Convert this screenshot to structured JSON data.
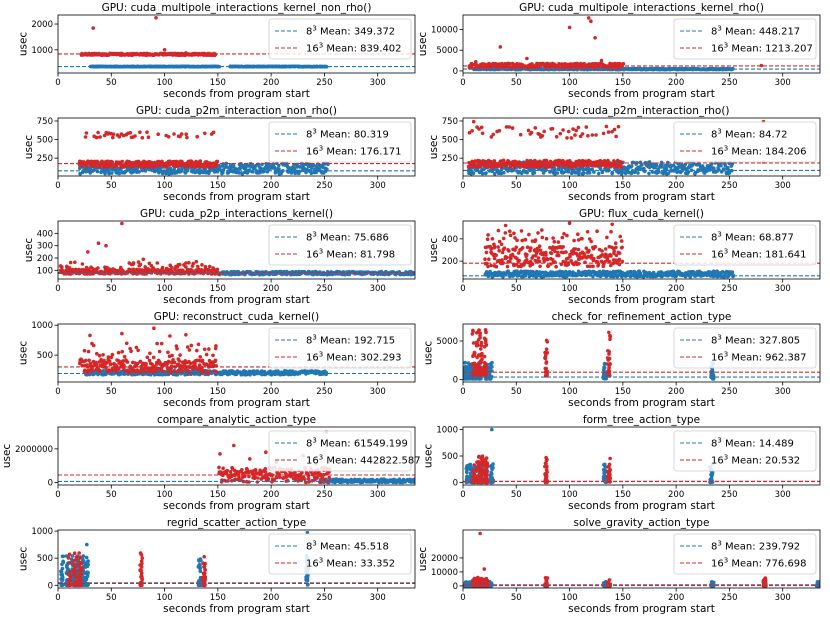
{
  "figure": {
    "colors": {
      "blue": "#1f77b4",
      "red": "#d62728"
    },
    "legend_label_template": "{sz}$^3$ Mean: {val}"
  },
  "chart_data": [
    {
      "type": "scatter",
      "title": "GPU: cuda_multipole_interactions_kernel_non_rho()",
      "xlabel": "seconds from program start",
      "ylabel": "usec",
      "xlim": [
        0,
        335
      ],
      "ylim": [
        100,
        2350
      ],
      "xticks": [
        0,
        50,
        100,
        150,
        200,
        250,
        300
      ],
      "yticks": [
        1000,
        2000
      ],
      "ytick_labels": [
        "1000",
        "2000"
      ],
      "legend_position": "top-right",
      "series": [
        {
          "name": "8 Mean: 349.372",
          "size": "8",
          "mean_label": "Mean: 349.372",
          "mean": 349.372,
          "color": "blue",
          "x_range": [
            30,
            252
          ],
          "y_band": [
            340,
            360
          ],
          "outliers": [],
          "gaps": [
            [
              150,
              160
            ]
          ]
        },
        {
          "name": "16 Mean: 839.402",
          "size": "16",
          "mean_label": "Mean: 839.402",
          "mean": 839.402,
          "color": "red",
          "x_range": [
            22,
            148
          ],
          "y_band": [
            790,
            860
          ],
          "outliers": [
            [
              33,
              1840
            ],
            [
              92,
              2240
            ],
            [
              100,
              1000
            ],
            [
              120,
              880
            ]
          ]
        }
      ]
    },
    {
      "type": "scatter",
      "title": "GPU: cuda_multipole_interactions_kernel_rho()",
      "xlabel": "seconds from program start",
      "ylabel": "usec",
      "xlim": [
        0,
        335
      ],
      "ylim": [
        -500,
        13500
      ],
      "xticks": [
        0,
        50,
        100,
        150,
        200,
        250,
        300
      ],
      "yticks": [
        0,
        5000,
        10000
      ],
      "ytick_labels": [
        "0",
        "5000",
        "10000"
      ],
      "legend_position": "top-right",
      "series": [
        {
          "name": "8 Mean: 448.217",
          "size": "8",
          "mean_label": "Mean: 448.217",
          "mean": 448.217,
          "color": "blue",
          "x_range": [
            10,
            252
          ],
          "y_band": [
            300,
            600
          ],
          "outliers": []
        },
        {
          "name": "16 Mean: 1213.207",
          "size": "16",
          "mean_label": "Mean: 1213.207",
          "mean": 1213.207,
          "color": "red",
          "x_range": [
            5,
            150
          ],
          "y_band": [
            600,
            1800
          ],
          "outliers": [
            [
              12,
              2200
            ],
            [
              35,
              5800
            ],
            [
              60,
              3000
            ],
            [
              100,
              10500
            ],
            [
              118,
              12800
            ],
            [
              120,
              12000
            ],
            [
              124,
              8000
            ],
            [
              130,
              2500
            ],
            [
              280,
              1300
            ]
          ]
        }
      ]
    },
    {
      "type": "scatter",
      "title": "GPU: cuda_p2m_interaction_non_rho()",
      "xlabel": "seconds from program start",
      "ylabel": "usec",
      "xlim": [
        0,
        335
      ],
      "ylim": [
        10,
        790
      ],
      "xticks": [
        0,
        50,
        100,
        150,
        200,
        250,
        300
      ],
      "yticks": [
        250,
        500,
        750
      ],
      "ytick_labels": [
        "250",
        "500",
        "750"
      ],
      "legend_position": "top-right",
      "series": [
        {
          "name": "8 Mean: 80.319",
          "size": "8",
          "mean_label": "Mean: 80.319",
          "mean": 80.319,
          "color": "blue",
          "x_range": [
            20,
            252
          ],
          "y_band": [
            40,
            180
          ],
          "outliers": []
        },
        {
          "name": "16 Mean: 176.171",
          "size": "16",
          "mean_label": "Mean: 176.171",
          "mean": 176.171,
          "color": "red",
          "x_range": [
            20,
            148
          ],
          "y_band": [
            130,
            210
          ],
          "outliers": [],
          "upper_band": [
            520,
            600
          ]
        }
      ]
    },
    {
      "type": "scatter",
      "title": "GPU: cuda_p2m_interaction_rho()",
      "xlabel": "seconds from program start",
      "ylabel": "usec",
      "xlim": [
        0,
        335
      ],
      "ylim": [
        10,
        790
      ],
      "xticks": [
        0,
        50,
        100,
        150,
        200,
        250,
        300
      ],
      "yticks": [
        250,
        500,
        750
      ],
      "ytick_labels": [
        "250",
        "500",
        "750"
      ],
      "legend_position": "top-right",
      "series": [
        {
          "name": "8 Mean: 84.72",
          "size": "8",
          "mean_label": "Mean: 84.72",
          "mean": 84.72,
          "color": "blue",
          "x_range": [
            5,
            252
          ],
          "y_band": [
            40,
            200
          ],
          "outliers": []
        },
        {
          "name": "16 Mean: 184.206",
          "size": "16",
          "mean_label": "Mean: 184.206",
          "mean": 184.206,
          "color": "red",
          "x_range": [
            5,
            148
          ],
          "y_band": [
            130,
            220
          ],
          "outliers": [
            [
              10,
              740
            ],
            [
              282,
              740
            ],
            [
              282,
              200
            ]
          ],
          "upper_band": [
            520,
            680
          ]
        }
      ]
    },
    {
      "type": "scatter",
      "title": "GPU: cuda_p2p_interactions_kernel()",
      "xlabel": "seconds from program start",
      "ylabel": "usec",
      "xlim": [
        0,
        335
      ],
      "ylim": [
        30,
        500
      ],
      "xticks": [
        0,
        50,
        100,
        150,
        200,
        250,
        300
      ],
      "yticks": [
        100,
        200,
        300,
        400
      ],
      "ytick_labels": [
        "100",
        "200",
        "300",
        "400"
      ],
      "legend_position": "top-right",
      "series": [
        {
          "name": "8 Mean: 75.686",
          "size": "8",
          "mean_label": "Mean: 75.686",
          "mean": 75.686,
          "color": "blue",
          "x_range": [
            150,
            335
          ],
          "y_band": [
            65,
            90
          ],
          "outliers": []
        },
        {
          "name": "16 Mean: 81.798",
          "size": "16",
          "mean_label": "Mean: 81.798",
          "mean": 81.798,
          "color": "red",
          "x_range": [
            2,
            150
          ],
          "y_band": [
            70,
            110
          ],
          "outliers": [
            [
              28,
              250
            ],
            [
              38,
              320
            ],
            [
              45,
              300
            ],
            [
              60,
              480
            ],
            [
              80,
              190
            ],
            [
              120,
              160
            ]
          ],
          "upper_band": [
            110,
            170
          ]
        }
      ]
    },
    {
      "type": "scatter",
      "title": "GPU: flux_cuda_kernel()",
      "xlabel": "seconds from program start",
      "ylabel": "usec",
      "xlim": [
        0,
        335
      ],
      "ylim": [
        40,
        560
      ],
      "xticks": [
        0,
        50,
        100,
        150,
        200,
        250,
        300
      ],
      "yticks": [
        200,
        400
      ],
      "ytick_labels": [
        "200",
        "400"
      ],
      "legend_position": "top-right",
      "series": [
        {
          "name": "8 Mean: 68.877",
          "size": "8",
          "mean_label": "Mean: 68.877",
          "mean": 68.877,
          "color": "blue",
          "x_range": [
            20,
            252
          ],
          "y_band": [
            60,
            110
          ],
          "outliers": []
        },
        {
          "name": "16 Mean: 181.641",
          "size": "16",
          "mean_label": "Mean: 181.641",
          "mean": 181.641,
          "color": "red",
          "x_range": [
            20,
            148
          ],
          "y_band": [
            150,
            330
          ],
          "outliers": [
            [
              40,
              520
            ],
            [
              100,
              540
            ],
            [
              140,
              530
            ]
          ],
          "upper_band": [
            330,
            480
          ]
        }
      ]
    },
    {
      "type": "scatter",
      "title": "GPU: reconstruct_cuda_kernel()",
      "xlabel": "seconds from program start",
      "ylabel": "usec",
      "xlim": [
        0,
        335
      ],
      "ylim": [
        50,
        1020
      ],
      "xticks": [
        0,
        50,
        100,
        150,
        200,
        250,
        300
      ],
      "yticks": [
        500,
        1000
      ],
      "ytick_labels": [
        "500",
        "1000"
      ],
      "legend_position": "top-right",
      "series": [
        {
          "name": "8 Mean: 192.715",
          "size": "8",
          "mean_label": "Mean: 192.715",
          "mean": 192.715,
          "color": "blue",
          "x_range": [
            25,
            252
          ],
          "y_band": [
            170,
            240
          ],
          "outliers": []
        },
        {
          "name": "16 Mean: 302.293",
          "size": "16",
          "mean_label": "Mean: 302.293",
          "mean": 302.293,
          "color": "red",
          "x_range": [
            20,
            148
          ],
          "y_band": [
            200,
            420
          ],
          "outliers": [
            [
              30,
              830
            ],
            [
              60,
              860
            ],
            [
              90,
              950
            ],
            [
              105,
              820
            ],
            [
              120,
              840
            ]
          ],
          "upper_band": [
            420,
            700
          ]
        }
      ]
    },
    {
      "type": "scatter",
      "title": "check_for_refinement_action_type",
      "xlabel": "seconds from program start",
      "ylabel": "usec",
      "xlim": [
        0,
        335
      ],
      "ylim": [
        -300,
        7200
      ],
      "xticks": [
        0,
        50,
        100,
        150,
        200,
        250,
        300
      ],
      "yticks": [
        0,
        5000
      ],
      "ytick_labels": [
        "0",
        "5000"
      ],
      "legend_position": "top-right",
      "series": [
        {
          "name": "8 Mean: 327.805",
          "size": "8",
          "mean_label": "Mean: 327.805",
          "mean": 327.805,
          "color": "blue",
          "x_range": [
            2,
            235
          ],
          "y_band": [
            100,
            2200
          ],
          "outliers": [],
          "clusters": [
            2,
            5,
            8,
            12,
            16,
            22,
            26,
            133,
            234
          ]
        },
        {
          "name": "16 Mean: 962.387",
          "size": "16",
          "mean_label": "Mean: 962.387",
          "mean": 962.387,
          "color": "red",
          "x_range": [
            5,
            150
          ],
          "y_band": [
            500,
            6800
          ],
          "outliers": [],
          "clusters": [
            10,
            14,
            17,
            21,
            78,
            137
          ]
        }
      ]
    },
    {
      "type": "scatter",
      "title": "compare_analytic_action_type",
      "xlabel": "seconds from program start",
      "ylabel": "usec",
      "xlim": [
        0,
        335
      ],
      "ylim": [
        -150000,
        3300000
      ],
      "xticks": [
        0,
        50,
        100,
        150,
        200,
        250,
        300
      ],
      "yticks": [
        0,
        2000000
      ],
      "ytick_labels": [
        "0",
        "2000000"
      ],
      "legend_position": "top-right",
      "series": [
        {
          "name": "8 Mean: 61549.199",
          "size": "8",
          "mean_label": "Mean: 61549.199",
          "mean": 61549.199,
          "color": "blue",
          "x_range": [
            245,
            335
          ],
          "y_band": [
            0,
            200000
          ],
          "outliers": []
        },
        {
          "name": "16 Mean: 442822.587",
          "size": "16",
          "mean_label": "Mean: 442822.587",
          "mean": 442822.587,
          "color": "red",
          "x_range": [
            150,
            255
          ],
          "y_band": [
            0,
            900000
          ],
          "outliers": [
            [
              152,
              1700000
            ],
            [
              165,
              2200000
            ],
            [
              180,
              1400000
            ],
            [
              195,
              1800000
            ],
            [
              205,
              1200000
            ],
            [
              215,
              800000
            ],
            [
              230,
              1600000
            ],
            [
              242,
              1100000
            ],
            [
              252,
              3000000
            ]
          ]
        }
      ]
    },
    {
      "type": "scatter",
      "title": "form_tree_action_type",
      "xlabel": "seconds from program start",
      "ylabel": "usec",
      "xlim": [
        0,
        335
      ],
      "ylim": [
        -50,
        1050
      ],
      "xticks": [
        0,
        50,
        100,
        150,
        200,
        250,
        300
      ],
      "yticks": [
        0,
        500,
        1000
      ],
      "ytick_labels": [
        "0",
        "500",
        "1000"
      ],
      "legend_position": "top-right",
      "series": [
        {
          "name": "8 Mean: 14.489",
          "size": "8",
          "mean_label": "Mean: 14.489",
          "mean": 14.489,
          "color": "blue",
          "x_range": [
            2,
            235
          ],
          "y_band": [
            0,
            350
          ],
          "outliers": [
            [
              27,
              1000
            ]
          ],
          "clusters": [
            4,
            8,
            12,
            17,
            22,
            27,
            133,
            233
          ]
        },
        {
          "name": "16 Mean: 20.532",
          "size": "16",
          "mean_label": "Mean: 20.532",
          "mean": 20.532,
          "color": "red",
          "x_range": [
            5,
            150
          ],
          "y_band": [
            0,
            500
          ],
          "outliers": [],
          "clusters": [
            10,
            14,
            18,
            22,
            78,
            137
          ]
        }
      ]
    },
    {
      "type": "scatter",
      "title": "regrid_scatter_action_type",
      "xlabel": "seconds from program start",
      "ylabel": "usec",
      "xlim": [
        0,
        335
      ],
      "ylim": [
        -50,
        1020
      ],
      "xticks": [
        0,
        50,
        100,
        150,
        200,
        250,
        300
      ],
      "yticks": [
        0,
        500,
        1000
      ],
      "ytick_labels": [
        "0",
        "500",
        "1000"
      ],
      "legend_position": "top-right",
      "series": [
        {
          "name": "8 Mean: 45.518",
          "size": "8",
          "mean_label": "Mean: 45.518",
          "mean": 45.518,
          "color": "blue",
          "x_range": [
            2,
            235
          ],
          "y_band": [
            0,
            550
          ],
          "outliers": [
            [
              234,
              970
            ],
            [
              27,
              750
            ]
          ],
          "clusters": [
            4,
            9,
            14,
            19,
            24,
            27,
            133,
            234
          ]
        },
        {
          "name": "16 Mean: 33.352",
          "size": "16",
          "mean_label": "Mean: 33.352",
          "mean": 33.352,
          "color": "red",
          "x_range": [
            5,
            150
          ],
          "y_band": [
            0,
            600
          ],
          "outliers": [],
          "clusters": [
            11,
            16,
            21,
            78,
            137
          ]
        }
      ]
    },
    {
      "type": "scatter",
      "title": "solve_gravity_action_type",
      "xlabel": "seconds from program start",
      "ylabel": "usec",
      "xlim": [
        0,
        335
      ],
      "ylim": [
        -1500,
        40000
      ],
      "xticks": [
        0,
        50,
        100,
        150,
        200,
        250,
        300
      ],
      "yticks": [
        0,
        10000,
        20000
      ],
      "ytick_labels": [
        "0",
        "10000",
        "20000"
      ],
      "legend_position": "top-right",
      "series": [
        {
          "name": "8 Mean: 239.792",
          "size": "8",
          "mean_label": "Mean: 239.792",
          "mean": 239.792,
          "color": "blue",
          "x_range": [
            2,
            335
          ],
          "y_band": [
            0,
            3000
          ],
          "outliers": [],
          "clusters": [
            3,
            7,
            11,
            16,
            21,
            26,
            133,
            234,
            333
          ]
        },
        {
          "name": "16 Mean: 776.698",
          "size": "16",
          "mean_label": "Mean: 776.698",
          "mean": 776.698,
          "color": "red",
          "x_range": [
            5,
            285
          ],
          "y_band": [
            0,
            6000
          ],
          "outliers": [
            [
              16,
              37500
            ],
            [
              20,
              12000
            ]
          ],
          "clusters": [
            10,
            14,
            18,
            22,
            78,
            137,
            283
          ]
        }
      ]
    }
  ]
}
